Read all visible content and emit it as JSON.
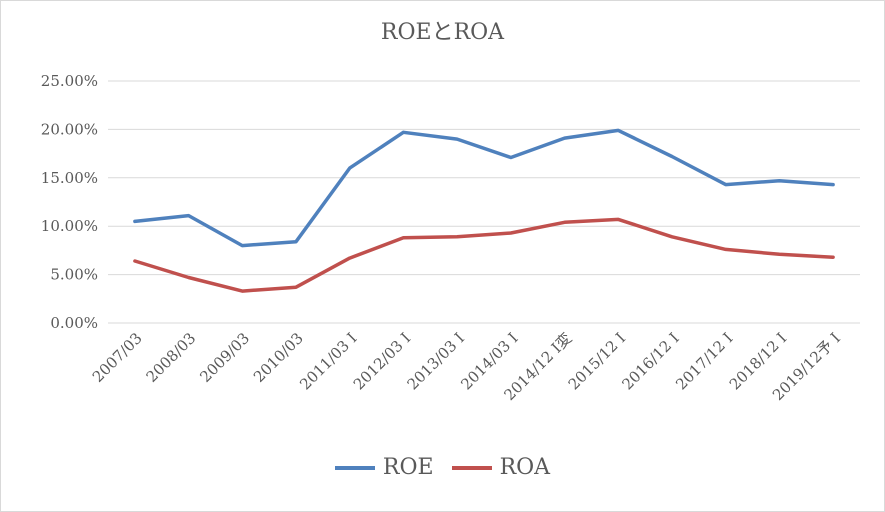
{
  "chart_data": {
    "type": "line",
    "title": "ROEとROA",
    "categories": [
      "2007/03",
      "2008/03",
      "2009/03",
      "2010/03",
      "2011/03 I",
      "2012/03 I",
      "2013/03 I",
      "2014/03 I",
      "2014/12 I変",
      "2015/12 I",
      "2016/12 I",
      "2017/12 I",
      "2018/12 I",
      "2019/12予 I"
    ],
    "y_ticks": [
      "0.00%",
      "5.00%",
      "10.00%",
      "15.00%",
      "20.00%",
      "25.00%"
    ],
    "ylim": [
      0,
      25
    ],
    "grid": true,
    "legend_position": "bottom",
    "series": [
      {
        "name": "ROE",
        "color": "#4f81bd",
        "values": [
          10.5,
          11.1,
          8.0,
          8.4,
          16.0,
          19.7,
          19.0,
          17.1,
          19.1,
          19.9,
          17.2,
          14.3,
          14.7,
          14.3
        ]
      },
      {
        "name": "ROA",
        "color": "#c0504d",
        "values": [
          6.4,
          4.7,
          3.3,
          3.7,
          6.7,
          8.8,
          8.9,
          9.3,
          10.4,
          10.7,
          8.9,
          7.6,
          7.1,
          6.8
        ]
      }
    ]
  }
}
